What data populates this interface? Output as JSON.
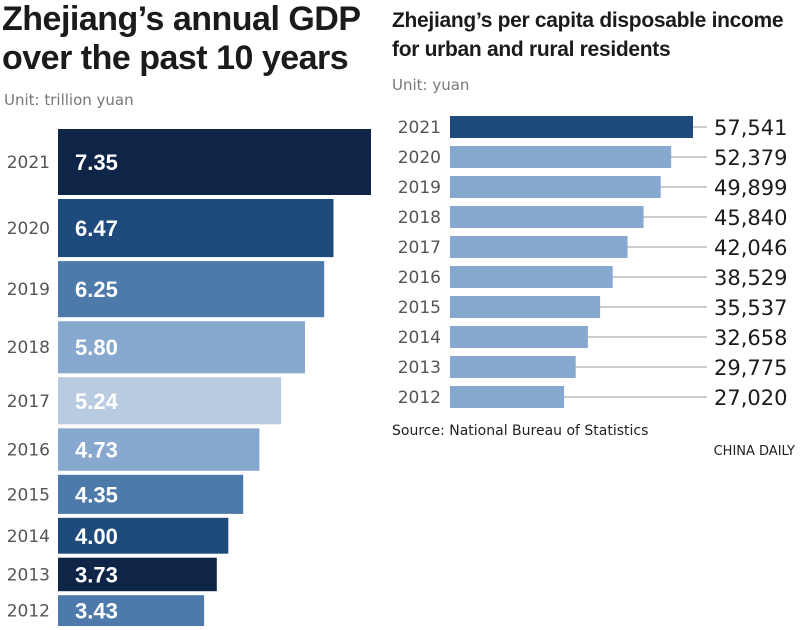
{
  "left_title": "Zhejiang’s annual GDP over the past 10 years",
  "left_unit": "Unit: trillion yuan",
  "right_title": "Zhejiang’s per capita disposable income for urban and rural residents",
  "right_unit": "Unit: yuan",
  "source": "Source: National Bureau of Statistics",
  "credit": "CHINA DAILY",
  "chart_data": [
    {
      "type": "bar",
      "orientation": "horizontal",
      "title": "Zhejiang’s annual GDP over the past 10 years",
      "unit": "trillion yuan",
      "categories": [
        "2021",
        "2020",
        "2019",
        "2018",
        "2017",
        "2016",
        "2015",
        "2014",
        "2013",
        "2012"
      ],
      "values": [
        7.35,
        6.47,
        6.25,
        5.8,
        5.24,
        4.73,
        4.35,
        4.0,
        3.73,
        3.43
      ],
      "labels": [
        "7.35",
        "6.47",
        "6.25",
        "5.80",
        "5.24",
        "4.73",
        "4.35",
        "4.00",
        "3.73",
        "3.43"
      ],
      "colors": [
        "#0f2547",
        "#1e4a7c",
        "#4d7aab",
        "#88a9cf",
        "#b8cbe1",
        "#88a9cf",
        "#4d7aab",
        "#1e4a7c",
        "#0f2547",
        "#4d7aab"
      ],
      "xlim": [
        0,
        7.35
      ]
    },
    {
      "type": "bar",
      "orientation": "horizontal",
      "title": "Zhejiang’s per capita disposable income for urban and rural residents",
      "unit": "yuan",
      "categories": [
        "2021",
        "2020",
        "2019",
        "2018",
        "2017",
        "2016",
        "2015",
        "2014",
        "2013",
        "2012"
      ],
      "values": [
        57541,
        52379,
        49899,
        45840,
        42046,
        38529,
        35537,
        32658,
        29775,
        27020
      ],
      "labels": [
        "57,541",
        "52,379",
        "49,899",
        "45,840",
        "42,046",
        "38,529",
        "35,537",
        "32,658",
        "29,775",
        "27,020"
      ],
      "colors": [
        "#1e4a7c",
        "#88a9cf",
        "#88a9cf",
        "#88a9cf",
        "#88a9cf",
        "#88a9cf",
        "#88a9cf",
        "#88a9cf",
        "#88a9cf",
        "#88a9cf"
      ],
      "xlim": [
        0,
        57541
      ]
    }
  ]
}
